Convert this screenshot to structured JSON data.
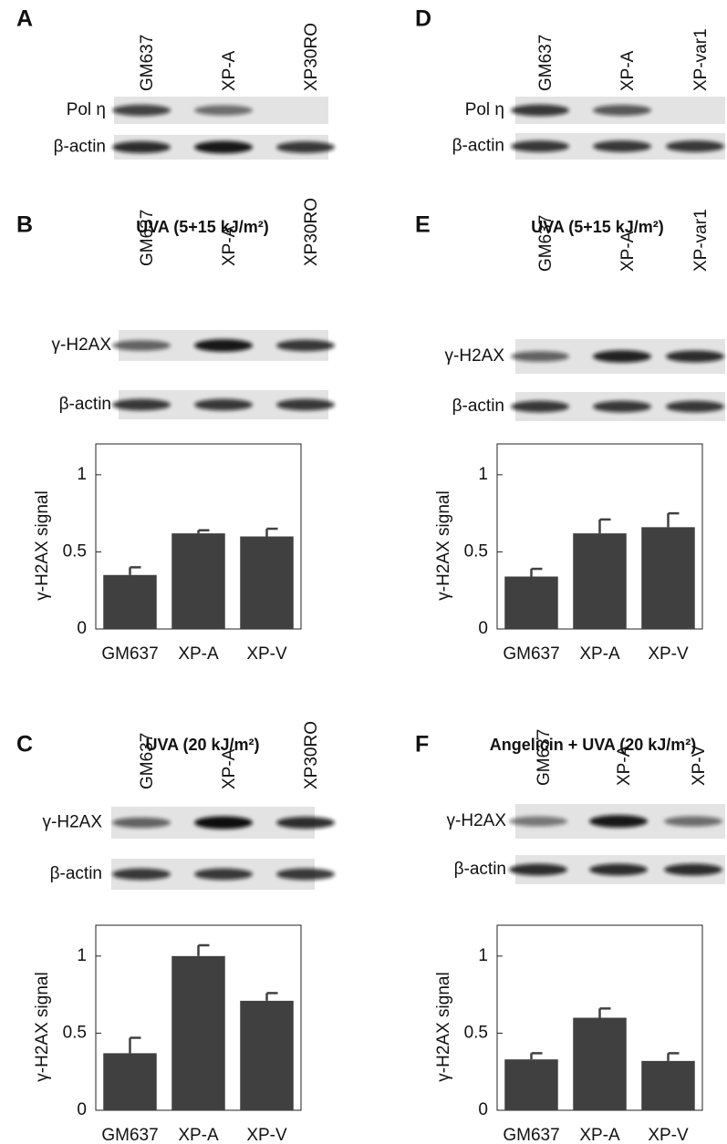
{
  "panels": [
    {
      "letter": "A",
      "lanes": [
        "GM637",
        "XP-A",
        "XP30RO"
      ],
      "rows": [
        "Pol η",
        "β-actin"
      ]
    },
    {
      "letter": "D",
      "lanes": [
        "GM637",
        "XP-A",
        "XP-var1"
      ],
      "rows": [
        "Pol η",
        "β-actin"
      ]
    },
    {
      "letter": "B",
      "title": "UVA (5+15 kJ/m²)",
      "lanes": [
        "GM637",
        "XP-A",
        "XP30RO"
      ],
      "rows": [
        "γ-H2AX",
        "β-actin"
      ]
    },
    {
      "letter": "E",
      "title": "UVA (5+15 kJ/m²)",
      "lanes": [
        "GM637",
        "XP-A",
        "XP-var1"
      ],
      "rows": [
        "γ-H2AX",
        "β-actin"
      ]
    },
    {
      "letter": "C",
      "title": "UVA (20 kJ/m²)",
      "lanes": [
        "GM637",
        "XP-A",
        "XP30RO"
      ],
      "rows": [
        "γ-H2AX",
        "β-actin"
      ]
    },
    {
      "letter": "F",
      "title": "Angelicin + UVA (20 kJ/m²)",
      "lanes": [
        "GM637",
        "XP-A",
        "XP-V"
      ],
      "rows": [
        "γ-H2AX",
        "β-actin"
      ]
    }
  ],
  "chart_data": [
    {
      "type": "bar",
      "ylabel": "γ-H2AX signal",
      "categories": [
        "GM637",
        "XP-A",
        "XP-V"
      ],
      "values": [
        0.35,
        0.62,
        0.6
      ],
      "errors": [
        0.05,
        0.02,
        0.05
      ],
      "color": "#404040",
      "ylim": [
        0,
        1.2
      ],
      "yticks": [
        0,
        0.5,
        1
      ]
    },
    {
      "type": "bar",
      "ylabel": "γ-H2AX signal",
      "categories": [
        "GM637",
        "XP-A",
        "XP-V"
      ],
      "values": [
        0.34,
        0.62,
        0.66
      ],
      "errors": [
        0.05,
        0.09,
        0.09
      ],
      "color": "#404040",
      "ylim": [
        0,
        1.2
      ],
      "yticks": [
        0,
        0.5,
        1
      ]
    },
    {
      "type": "bar",
      "ylabel": "γ-H2AX signal",
      "categories": [
        "GM637",
        "XP-A",
        "XP-V"
      ],
      "values": [
        0.37,
        1.0,
        0.71
      ],
      "errors": [
        0.1,
        0.07,
        0.05
      ],
      "color": "#404040",
      "ylim": [
        0,
        1.2
      ],
      "yticks": [
        0,
        0.5,
        1
      ]
    },
    {
      "type": "bar",
      "ylabel": "γ-H2AX signal",
      "categories": [
        "GM637",
        "XP-A",
        "XP-V"
      ],
      "values": [
        0.33,
        0.6,
        0.32
      ],
      "errors": [
        0.04,
        0.06,
        0.05
      ],
      "color": "#404040",
      "ylim": [
        0,
        1.2
      ],
      "yticks": [
        0,
        0.5,
        1
      ]
    }
  ]
}
